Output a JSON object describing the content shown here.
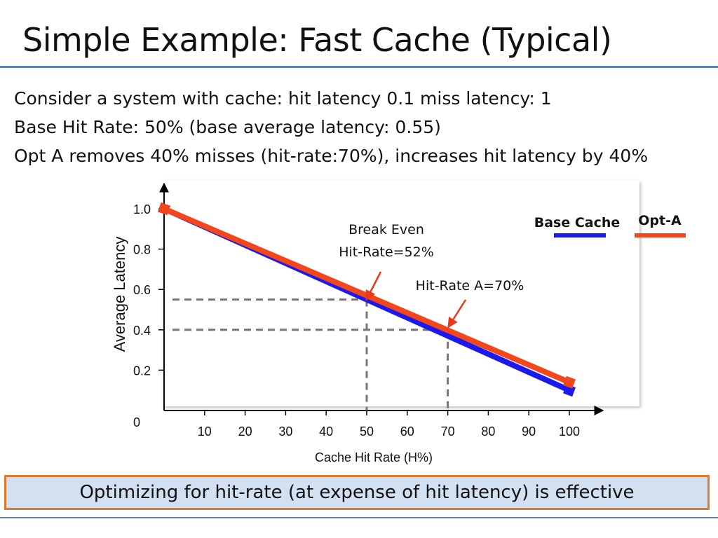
{
  "slide": {
    "title": "Simple Example: Fast Cache (Typical)",
    "lines": [
      "Consider a system with cache:  hit latency 0.1  miss latency: 1",
      "Base Hit Rate: 50% (base average latency: 0.55)",
      "Opt A removes 40% misses (hit-rate:70%), increases hit latency by 40%"
    ],
    "callout": "Optimizing for hit-rate (at expense of hit latency) is effective"
  },
  "chart_data": {
    "type": "line",
    "xlabel": "Cache Hit Rate (H%)",
    "ylabel": "Average Latency",
    "xlim": [
      0,
      100
    ],
    "ylim": [
      0,
      1.0
    ],
    "x_ticks": [
      "10",
      "20",
      "30",
      "40",
      "50",
      "60",
      "70",
      "80",
      "90",
      "100"
    ],
    "x_tick_values": [
      10,
      20,
      30,
      40,
      50,
      60,
      70,
      80,
      90,
      100
    ],
    "y_ticks": [
      "0",
      "0.2",
      "0.4",
      "0.6",
      "0.8",
      "1.0"
    ],
    "y_tick_values": [
      0,
      0.2,
      0.4,
      0.6,
      0.8,
      1.0
    ],
    "series": [
      {
        "name": "Base Cache",
        "color": "#1a1aee",
        "x": [
          0,
          100
        ],
        "y": [
          1.0,
          0.1
        ]
      },
      {
        "name": "Opt-A",
        "color": "#f2461c",
        "x": [
          0,
          100
        ],
        "y": [
          1.0,
          0.14
        ]
      }
    ],
    "legend_position": "top-right",
    "annotations": [
      {
        "lines": [
          "Break Even",
          "Hit-Rate=52%"
        ],
        "x": 52,
        "y": 0.53
      },
      {
        "lines": [
          "Hit-Rate A=70%"
        ],
        "x": 70,
        "y": 0.4
      }
    ],
    "reference_lines": [
      {
        "x": 50,
        "y": 0.55
      },
      {
        "x": 70,
        "y": 0.4
      }
    ],
    "grid": false
  }
}
